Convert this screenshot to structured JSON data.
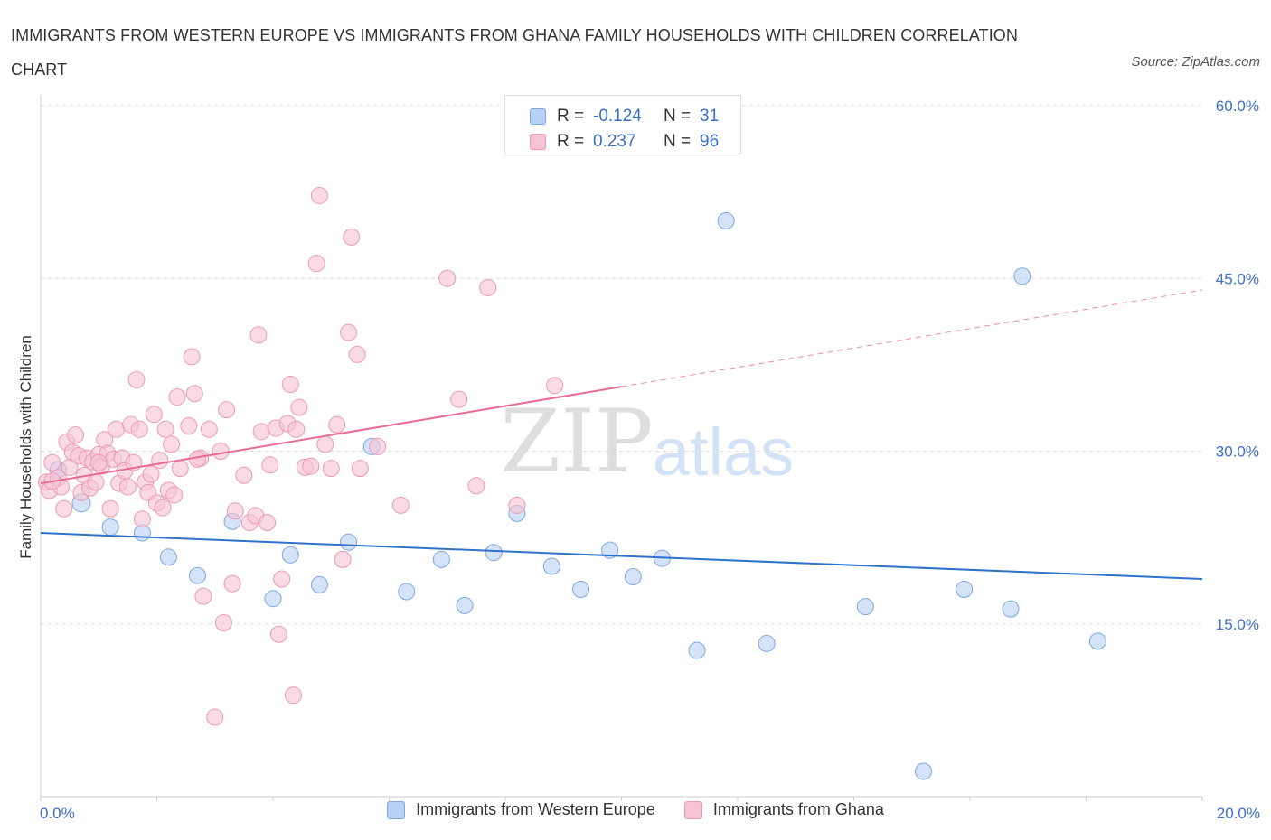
{
  "title": "IMMIGRANTS FROM WESTERN EUROPE VS IMMIGRANTS FROM GHANA FAMILY HOUSEHOLDS WITH CHILDREN CORRELATION CHART",
  "source": "Source: ZipAtlas.com",
  "watermark": {
    "zip": "ZIP",
    "atlas": "atlas"
  },
  "colors": {
    "blue_fill": "#b8d0f3",
    "blue_stroke": "#7fa7e0",
    "blue_line": "#2f72c9",
    "pink_fill": "#f7c3d3",
    "pink_stroke": "#ec9ab3",
    "pink_line": "#e96b93",
    "grid": "#dddddd",
    "tick_text": "#3b6fc9"
  },
  "legend_top": [
    {
      "r_label": "R =",
      "r_value": "-0.124",
      "n_label": "N =",
      "n_value": "31"
    },
    {
      "r_label": "R =",
      "r_value": "0.237",
      "n_label": "N =",
      "n_value": "96"
    }
  ],
  "chart_data": {
    "type": "scatter",
    "title": "IMMIGRANTS FROM WESTERN EUROPE VS IMMIGRANTS FROM GHANA FAMILY HOUSEHOLDS WITH CHILDREN CORRELATION CHART",
    "xlabel": "",
    "ylabel": "Family Households with Children",
    "xlim": [
      0,
      20
    ],
    "ylim": [
      0,
      60
    ],
    "x_tick_labels": [
      "0.0%",
      "20.0%"
    ],
    "y_ticks": [
      15,
      30,
      45,
      60
    ],
    "y_tick_labels": [
      "15.0%",
      "30.0%",
      "45.0%",
      "60.0%"
    ],
    "grid": "horizontal dashed",
    "legend_placement": "bottom",
    "series": [
      {
        "name": "Immigrants from Western Europe",
        "color": "blue",
        "R": -0.124,
        "N": 31,
        "trend": {
          "x": [
            0,
            20
          ],
          "y": [
            22.9,
            18.9
          ],
          "dashed_from": null
        },
        "points": [
          [
            0.3,
            28.4
          ],
          [
            1.2,
            23.4
          ],
          [
            1.75,
            22.9
          ],
          [
            2.2,
            20.8
          ],
          [
            2.7,
            19.2
          ],
          [
            3.3,
            23.9
          ],
          [
            4.0,
            17.2
          ],
          [
            4.3,
            21.0
          ],
          [
            4.8,
            18.4
          ],
          [
            5.3,
            22.1
          ],
          [
            5.7,
            30.4
          ],
          [
            6.3,
            17.8
          ],
          [
            6.9,
            20.6
          ],
          [
            7.3,
            16.6
          ],
          [
            7.8,
            21.2
          ],
          [
            8.2,
            24.6
          ],
          [
            8.8,
            20.0
          ],
          [
            9.3,
            18.0
          ],
          [
            9.8,
            21.4
          ],
          [
            10.2,
            19.1
          ],
          [
            10.7,
            20.7
          ],
          [
            11.3,
            12.7
          ],
          [
            11.8,
            50.0
          ],
          [
            12.5,
            13.3
          ],
          [
            14.2,
            16.5
          ],
          [
            15.2,
            2.2
          ],
          [
            15.9,
            18.0
          ],
          [
            16.7,
            16.3
          ],
          [
            16.9,
            45.2
          ],
          [
            18.2,
            13.5
          ],
          [
            0.7,
            25.5
          ]
        ]
      },
      {
        "name": "Immigrants from Ghana",
        "color": "pink",
        "R": 0.237,
        "N": 96,
        "trend": {
          "x": [
            0,
            20
          ],
          "y": [
            27.2,
            44.0
          ],
          "dashed_from": 10.0
        },
        "points": [
          [
            0.1,
            27.3
          ],
          [
            0.15,
            26.6
          ],
          [
            0.2,
            29.0
          ],
          [
            0.3,
            27.7
          ],
          [
            0.35,
            26.9
          ],
          [
            0.4,
            25.0
          ],
          [
            0.45,
            30.8
          ],
          [
            0.5,
            28.6
          ],
          [
            0.55,
            29.9
          ],
          [
            0.6,
            31.4
          ],
          [
            0.65,
            29.6
          ],
          [
            0.7,
            26.4
          ],
          [
            0.75,
            27.9
          ],
          [
            0.8,
            29.4
          ],
          [
            0.85,
            26.8
          ],
          [
            0.9,
            29.1
          ],
          [
            0.95,
            27.3
          ],
          [
            1.0,
            29.7
          ],
          [
            1.05,
            28.7
          ],
          [
            1.1,
            31.0
          ],
          [
            1.15,
            29.8
          ],
          [
            1.2,
            25.0
          ],
          [
            1.25,
            29.3
          ],
          [
            1.3,
            31.9
          ],
          [
            1.35,
            27.2
          ],
          [
            1.4,
            29.4
          ],
          [
            1.45,
            28.3
          ],
          [
            1.5,
            26.9
          ],
          [
            1.55,
            32.3
          ],
          [
            1.6,
            29.0
          ],
          [
            1.65,
            36.2
          ],
          [
            1.7,
            31.9
          ],
          [
            1.75,
            24.1
          ],
          [
            1.8,
            27.3
          ],
          [
            1.85,
            26.4
          ],
          [
            1.9,
            28.0
          ],
          [
            1.95,
            33.2
          ],
          [
            2.0,
            25.5
          ],
          [
            2.05,
            29.2
          ],
          [
            2.1,
            25.1
          ],
          [
            2.15,
            31.9
          ],
          [
            2.2,
            26.6
          ],
          [
            2.25,
            30.6
          ],
          [
            2.3,
            26.2
          ],
          [
            2.35,
            34.7
          ],
          [
            2.4,
            28.5
          ],
          [
            2.55,
            32.2
          ],
          [
            2.6,
            38.2
          ],
          [
            2.65,
            35.0
          ],
          [
            2.75,
            29.4
          ],
          [
            2.8,
            17.4
          ],
          [
            2.9,
            31.9
          ],
          [
            3.0,
            6.9
          ],
          [
            3.1,
            30.0
          ],
          [
            3.15,
            15.1
          ],
          [
            3.2,
            33.6
          ],
          [
            3.3,
            18.5
          ],
          [
            3.35,
            24.8
          ],
          [
            3.5,
            27.9
          ],
          [
            3.6,
            23.8
          ],
          [
            3.7,
            24.4
          ],
          [
            3.75,
            40.1
          ],
          [
            3.8,
            31.7
          ],
          [
            3.9,
            23.8
          ],
          [
            3.95,
            28.8
          ],
          [
            4.05,
            32.0
          ],
          [
            4.1,
            14.1
          ],
          [
            4.15,
            18.9
          ],
          [
            4.25,
            32.4
          ],
          [
            4.3,
            35.8
          ],
          [
            4.35,
            8.8
          ],
          [
            4.4,
            31.9
          ],
          [
            4.45,
            33.8
          ],
          [
            4.55,
            28.6
          ],
          [
            4.65,
            28.7
          ],
          [
            4.75,
            46.3
          ],
          [
            4.8,
            52.2
          ],
          [
            4.9,
            30.6
          ],
          [
            5.0,
            28.5
          ],
          [
            5.1,
            32.3
          ],
          [
            5.2,
            20.6
          ],
          [
            5.3,
            40.3
          ],
          [
            5.35,
            48.6
          ],
          [
            5.45,
            38.4
          ],
          [
            5.5,
            28.5
          ],
          [
            5.8,
            30.4
          ],
          [
            6.2,
            25.3
          ],
          [
            7.0,
            45.0
          ],
          [
            7.2,
            34.5
          ],
          [
            7.5,
            27.0
          ],
          [
            7.7,
            44.2
          ],
          [
            8.2,
            25.3
          ],
          [
            8.85,
            35.7
          ],
          [
            1.0,
            29.0
          ],
          [
            0.2,
            27.4
          ],
          [
            2.7,
            29.3
          ]
        ]
      }
    ]
  }
}
